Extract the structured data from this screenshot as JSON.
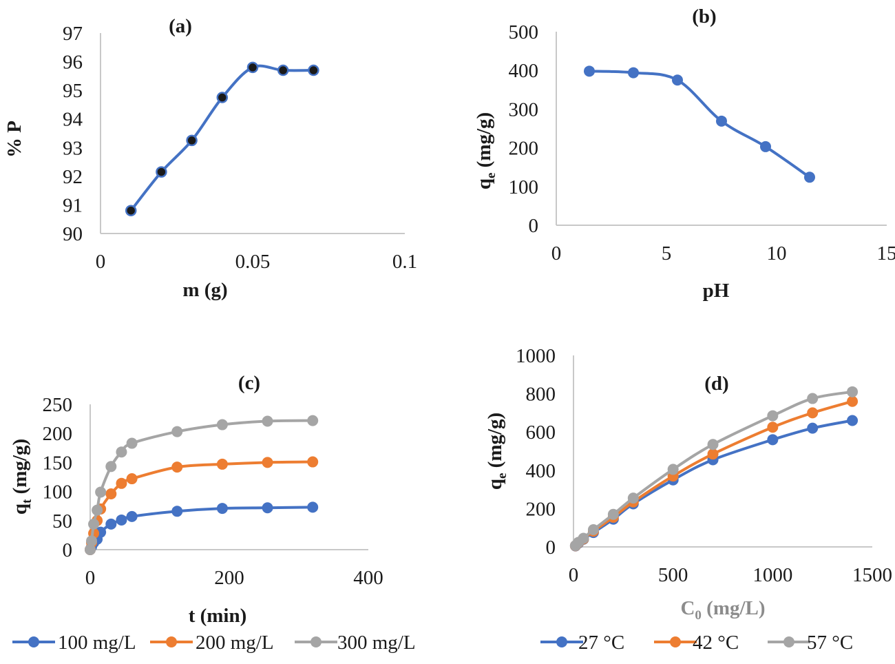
{
  "chart_data": [
    {
      "id": "a",
      "type": "line",
      "title": "(a)",
      "xlabel": "m (g)",
      "ylabel": "% P",
      "xlim": [
        0,
        0.1
      ],
      "ylim": [
        90,
        97
      ],
      "xticks": [
        "0",
        "0.05",
        "0.1"
      ],
      "xtick_values": [
        0,
        0.05,
        0.1
      ],
      "yticks": [
        "90",
        "91",
        "92",
        "93",
        "94",
        "95",
        "96",
        "97"
      ],
      "ytick_values": [
        90,
        91,
        92,
        93,
        94,
        95,
        96,
        97
      ],
      "grid": false,
      "legend": null,
      "series": [
        {
          "name": "% P",
          "color": "#4472c4",
          "marker_color": "#1a1a1a",
          "x": [
            0.01,
            0.02,
            0.03,
            0.04,
            0.05,
            0.06,
            0.07
          ],
          "values": [
            90.8,
            92.15,
            93.25,
            94.75,
            95.8,
            95.7,
            95.7
          ]
        }
      ]
    },
    {
      "id": "b",
      "type": "line",
      "title": "(b)",
      "xlabel": "pH",
      "ylabel": "qe (mg/g)",
      "ylabel_main": "q",
      "ylabel_sub": "e",
      "ylabel_rest": " (mg/g)",
      "xlim": [
        0,
        15
      ],
      "ylim": [
        0,
        500
      ],
      "xticks": [
        "0",
        "5",
        "10",
        "15"
      ],
      "xtick_values": [
        0,
        5,
        10,
        15
      ],
      "yticks": [
        "0",
        "100",
        "200",
        "300",
        "400",
        "500"
      ],
      "ytick_values": [
        0,
        100,
        200,
        300,
        400,
        500
      ],
      "grid": false,
      "legend": null,
      "series": [
        {
          "name": "qe",
          "color": "#4472c4",
          "marker_color": "#4472c4",
          "x": [
            1.5,
            3.5,
            5.5,
            7.5,
            9.5,
            11.5
          ],
          "values": [
            398,
            394,
            375,
            269,
            203,
            124
          ]
        }
      ]
    },
    {
      "id": "c",
      "type": "line",
      "title": "(c)",
      "xlabel": "t (min)",
      "ylabel": "qt (mg/g)",
      "ylabel_main": "q",
      "ylabel_sub": "t",
      "ylabel_rest": " (mg/g)",
      "xlim": [
        0,
        400
      ],
      "ylim": [
        0,
        250
      ],
      "xticks": [
        "0",
        "200",
        "400"
      ],
      "xtick_values": [
        0,
        200,
        400
      ],
      "yticks": [
        "0",
        "50",
        "100",
        "150",
        "200",
        "250"
      ],
      "ytick_values": [
        0,
        50,
        100,
        150,
        200,
        250
      ],
      "grid": false,
      "legend": "bottom",
      "x": [
        0,
        2,
        5,
        10,
        15,
        30,
        45,
        60,
        125,
        190,
        255,
        320
      ],
      "series": [
        {
          "name": "100 mg/L",
          "color": "#4472c4",
          "values": [
            0,
            5,
            12,
            18,
            30,
            44,
            51,
            57,
            66,
            71,
            72,
            73
          ]
        },
        {
          "name": "200 mg/L",
          "color": "#ed7d31",
          "values": [
            0,
            12,
            28,
            50,
            70,
            96,
            114,
            122,
            142,
            147,
            150,
            151
          ]
        },
        {
          "name": "300 mg/L",
          "color": "#a5a5a5",
          "values": [
            0,
            15,
            44,
            68,
            99,
            143,
            168,
            183,
            203,
            215,
            221,
            222
          ]
        }
      ]
    },
    {
      "id": "d",
      "type": "line",
      "title": "(d)",
      "xlabel": "C0 (mg/L)",
      "xlabel_main": "C",
      "xlabel_sub": "0",
      "xlabel_rest": " (mg/L)",
      "ylabel": "qe (mg/g)",
      "ylabel_main": "q",
      "ylabel_sub": "e",
      "ylabel_rest": " (mg/g)",
      "xlim": [
        0,
        1500
      ],
      "ylim": [
        0,
        1000
      ],
      "xticks": [
        "0",
        "500",
        "1000",
        "1500"
      ],
      "xtick_values": [
        0,
        500,
        1000,
        1500
      ],
      "yticks": [
        "0",
        "200",
        "400",
        "600",
        "800",
        "1000"
      ],
      "ytick_values": [
        0,
        200,
        400,
        600,
        800,
        1000
      ],
      "grid": false,
      "legend": "bottom",
      "x": [
        10,
        25,
        50,
        100,
        200,
        300,
        500,
        700,
        1000,
        1200,
        1400
      ],
      "series": [
        {
          "name": "27 °C",
          "color": "#4472c4",
          "values": [
            5,
            20,
            40,
            75,
            145,
            225,
            350,
            455,
            560,
            620,
            660
          ]
        },
        {
          "name": "42 °C",
          "color": "#ed7d31",
          "values": [
            6,
            22,
            42,
            82,
            155,
            235,
            370,
            485,
            625,
            700,
            760
          ]
        },
        {
          "name": "57 °C",
          "color": "#a5a5a5",
          "values": [
            7,
            24,
            45,
            90,
            170,
            255,
            405,
            535,
            685,
            775,
            810
          ]
        }
      ]
    }
  ]
}
